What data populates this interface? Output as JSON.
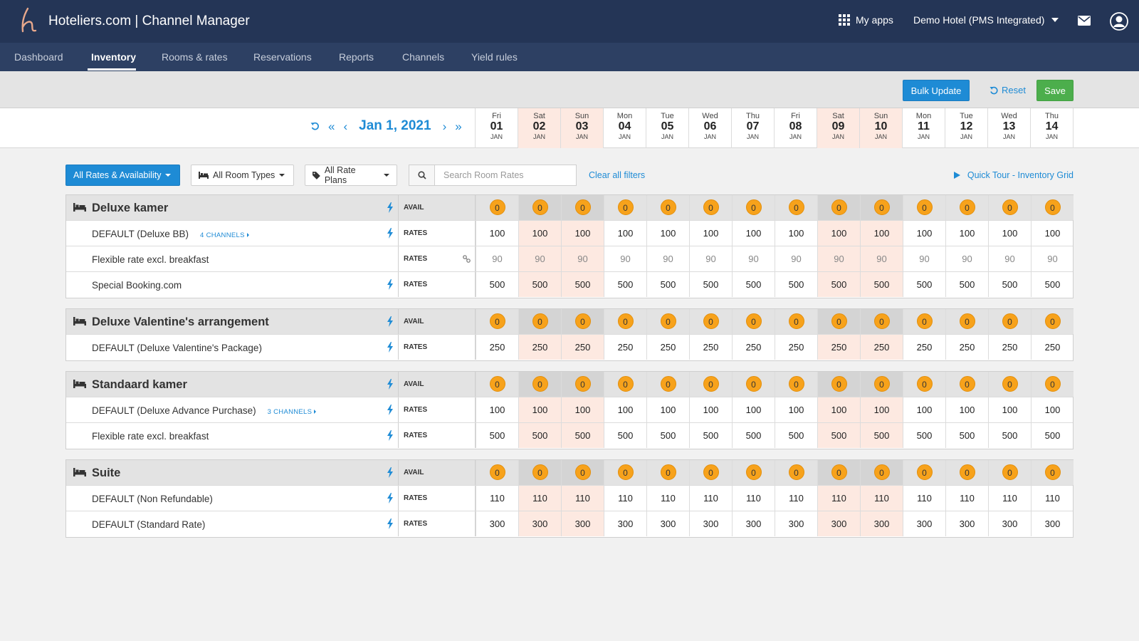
{
  "app": {
    "title": "Hoteliers.com | Channel Manager",
    "myapps_label": "My apps",
    "hotel": "Demo Hotel (PMS Integrated)"
  },
  "nav": {
    "items": [
      "Dashboard",
      "Inventory",
      "Rooms & rates",
      "Reservations",
      "Reports",
      "Channels",
      "Yield rules"
    ],
    "active": "Inventory"
  },
  "toolbar": {
    "bulk_update": "Bulk Update",
    "reset": "Reset",
    "save": "Save"
  },
  "date_nav": {
    "current": "Jan 1, 2021"
  },
  "days": [
    {
      "dow": "Fri",
      "num": "01",
      "mon": "JAN",
      "weekend": false
    },
    {
      "dow": "Sat",
      "num": "02",
      "mon": "JAN",
      "weekend": true
    },
    {
      "dow": "Sun",
      "num": "03",
      "mon": "JAN",
      "weekend": true
    },
    {
      "dow": "Mon",
      "num": "04",
      "mon": "JAN",
      "weekend": false
    },
    {
      "dow": "Tue",
      "num": "05",
      "mon": "JAN",
      "weekend": false
    },
    {
      "dow": "Wed",
      "num": "06",
      "mon": "JAN",
      "weekend": false
    },
    {
      "dow": "Thu",
      "num": "07",
      "mon": "JAN",
      "weekend": false
    },
    {
      "dow": "Fri",
      "num": "08",
      "mon": "JAN",
      "weekend": false
    },
    {
      "dow": "Sat",
      "num": "09",
      "mon": "JAN",
      "weekend": true
    },
    {
      "dow": "Sun",
      "num": "10",
      "mon": "JAN",
      "weekend": true
    },
    {
      "dow": "Mon",
      "num": "11",
      "mon": "JAN",
      "weekend": false
    },
    {
      "dow": "Tue",
      "num": "12",
      "mon": "JAN",
      "weekend": false
    },
    {
      "dow": "Wed",
      "num": "13",
      "mon": "JAN",
      "weekend": false
    },
    {
      "dow": "Thu",
      "num": "14",
      "mon": "JAN",
      "weekend": false
    }
  ],
  "filters": {
    "all_rates": "All Rates & Availability",
    "room_types": "All Room Types",
    "rate_plans": "All Rate Plans",
    "search_placeholder": "Search Room Rates",
    "clear": "Clear all filters",
    "quick_tour": "Quick Tour - Inventory Grid"
  },
  "labels": {
    "avail": "AVAIL",
    "rates": "RATES"
  },
  "rooms": [
    {
      "name": "Deluxe kamer",
      "avail": [
        0,
        0,
        0,
        0,
        0,
        0,
        0,
        0,
        0,
        0,
        0,
        0,
        0,
        0
      ],
      "rates": [
        {
          "name": "DEFAULT (Deluxe BB)",
          "channels": "4 CHANNELS",
          "bolt": true,
          "linked": false,
          "values": [
            100,
            100,
            100,
            100,
            100,
            100,
            100,
            100,
            100,
            100,
            100,
            100,
            100,
            100
          ]
        },
        {
          "name": "Flexible rate excl. breakfast",
          "channels": "",
          "bolt": false,
          "linked": true,
          "values": [
            90,
            90,
            90,
            90,
            90,
            90,
            90,
            90,
            90,
            90,
            90,
            90,
            90,
            90
          ]
        },
        {
          "name": "Special Booking.com",
          "channels": "",
          "bolt": true,
          "linked": false,
          "values": [
            500,
            500,
            500,
            500,
            500,
            500,
            500,
            500,
            500,
            500,
            500,
            500,
            500,
            500
          ]
        }
      ]
    },
    {
      "name": "Deluxe Valentine's arrangement",
      "avail": [
        0,
        0,
        0,
        0,
        0,
        0,
        0,
        0,
        0,
        0,
        0,
        0,
        0,
        0
      ],
      "rates": [
        {
          "name": "DEFAULT (Deluxe Valentine's Package)",
          "channels": "",
          "bolt": true,
          "linked": false,
          "values": [
            250,
            250,
            250,
            250,
            250,
            250,
            250,
            250,
            250,
            250,
            250,
            250,
            250,
            250
          ]
        }
      ]
    },
    {
      "name": "Standaard kamer",
      "avail": [
        0,
        0,
        0,
        0,
        0,
        0,
        0,
        0,
        0,
        0,
        0,
        0,
        0,
        0
      ],
      "rates": [
        {
          "name": "DEFAULT (Deluxe Advance Purchase)",
          "channels": "3 CHANNELS",
          "bolt": true,
          "linked": false,
          "values": [
            100,
            100,
            100,
            100,
            100,
            100,
            100,
            100,
            100,
            100,
            100,
            100,
            100,
            100
          ]
        },
        {
          "name": "Flexible rate excl. breakfast",
          "channels": "",
          "bolt": true,
          "linked": false,
          "values": [
            500,
            500,
            500,
            500,
            500,
            500,
            500,
            500,
            500,
            500,
            500,
            500,
            500,
            500
          ]
        }
      ]
    },
    {
      "name": "Suite",
      "avail": [
        0,
        0,
        0,
        0,
        0,
        0,
        0,
        0,
        0,
        0,
        0,
        0,
        0,
        0
      ],
      "rates": [
        {
          "name": "DEFAULT (Non Refundable)",
          "channels": "",
          "bolt": true,
          "linked": false,
          "values": [
            110,
            110,
            110,
            110,
            110,
            110,
            110,
            110,
            110,
            110,
            110,
            110,
            110,
            110
          ]
        },
        {
          "name": "DEFAULT (Standard Rate)",
          "channels": "",
          "bolt": true,
          "linked": false,
          "values": [
            300,
            300,
            300,
            300,
            300,
            300,
            300,
            300,
            300,
            300,
            300,
            300,
            300,
            300
          ]
        }
      ]
    }
  ],
  "colors": {
    "topbar": "#243556",
    "navbar": "#2d4063",
    "accent": "#1e8bd5",
    "save": "#4cae4c",
    "badge": "#f7a21b",
    "weekend": "#fde9e1"
  }
}
